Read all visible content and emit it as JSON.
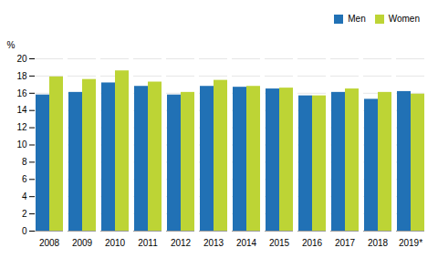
{
  "chart_data": {
    "type": "bar",
    "ylabel": "%",
    "categories": [
      "2008",
      "2009",
      "2010",
      "2011",
      "2012",
      "2013",
      "2014",
      "2015",
      "2016",
      "2017",
      "2018",
      "2019*"
    ],
    "series": [
      {
        "name": "Men",
        "color": "#2171b5",
        "values": [
          15.8,
          16.1,
          17.2,
          16.8,
          15.8,
          16.8,
          16.7,
          16.5,
          15.7,
          16.1,
          15.3,
          16.2
        ]
      },
      {
        "name": "Women",
        "color": "#bdd435",
        "values": [
          17.9,
          17.6,
          18.6,
          17.3,
          16.1,
          17.5,
          16.8,
          16.6,
          15.7,
          16.5,
          16.1,
          15.9
        ]
      }
    ],
    "ylim": [
      0,
      20
    ],
    "yticks": [
      0,
      2,
      4,
      6,
      8,
      10,
      12,
      14,
      16,
      18,
      20
    ],
    "grid": true,
    "legend": "upper right"
  }
}
